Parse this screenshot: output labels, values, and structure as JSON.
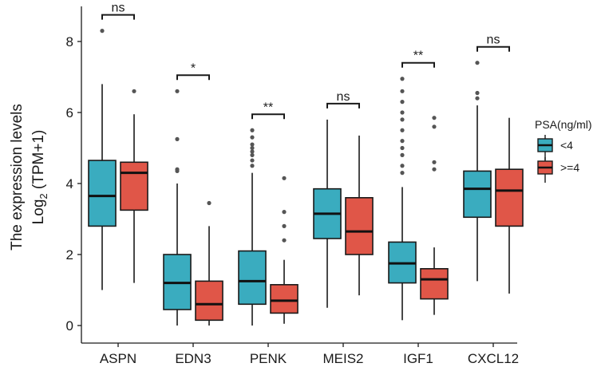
{
  "chart_data": {
    "type": "boxplot",
    "title": "",
    "xlabel": "",
    "ylabel_line1": "The expression levels",
    "ylabel_line2_prefix": "Log",
    "ylabel_line2_sub": "2",
    "ylabel_line2_suffix": " (TPM+1)",
    "ylim": [
      0,
      9
    ],
    "yticks": [
      0,
      2,
      4,
      6,
      8
    ],
    "categories": [
      "ASPN",
      "EDN3",
      "PENK",
      "MEIS2",
      "IGF1",
      "CXCL12"
    ],
    "legend": {
      "title": "PSA(ng/ml)",
      "position": "right",
      "entries": [
        "<4",
        ">=4"
      ]
    },
    "series_colors": [
      "#3aacbf",
      "#e05648"
    ],
    "significance": [
      "ns",
      "*",
      "**",
      "ns",
      "**",
      "ns"
    ],
    "series": [
      {
        "name": "<4",
        "boxes": [
          {
            "whisker_low": 1.0,
            "q1": 2.8,
            "median": 3.65,
            "q3": 4.65,
            "whisker_high": 6.8,
            "outliers": [
              8.3
            ]
          },
          {
            "whisker_low": 0.0,
            "q1": 0.45,
            "median": 1.2,
            "q3": 2.0,
            "whisker_high": 4.0,
            "outliers": [
              4.35,
              4.4,
              5.25,
              6.6
            ]
          },
          {
            "whisker_low": 0.0,
            "q1": 0.6,
            "median": 1.25,
            "q3": 2.1,
            "whisker_high": 4.3,
            "outliers": [
              4.5,
              4.65,
              4.8,
              4.9,
              5.0,
              5.1,
              5.3,
              5.5
            ]
          },
          {
            "whisker_low": 0.5,
            "q1": 2.45,
            "median": 3.15,
            "q3": 3.85,
            "whisker_high": 5.8,
            "outliers": []
          },
          {
            "whisker_low": 0.15,
            "q1": 1.2,
            "median": 1.75,
            "q3": 2.35,
            "whisker_high": 3.9,
            "outliers": [
              4.3,
              4.5,
              4.8,
              5.0,
              5.2,
              5.5,
              5.8,
              6.0,
              6.3,
              6.6,
              6.95
            ]
          },
          {
            "whisker_low": 1.25,
            "q1": 3.05,
            "median": 3.85,
            "q3": 4.35,
            "whisker_high": 6.2,
            "outliers": [
              6.4,
              6.55,
              7.4
            ]
          }
        ]
      },
      {
        "name": ">=4",
        "boxes": [
          {
            "whisker_low": 1.2,
            "q1": 3.25,
            "median": 4.3,
            "q3": 4.6,
            "whisker_high": 5.95,
            "outliers": [
              6.6
            ]
          },
          {
            "whisker_low": 0.0,
            "q1": 0.15,
            "median": 0.6,
            "q3": 1.25,
            "whisker_high": 2.8,
            "outliers": [
              3.45
            ]
          },
          {
            "whisker_low": 0.05,
            "q1": 0.35,
            "median": 0.7,
            "q3": 1.15,
            "whisker_high": 1.85,
            "outliers": [
              2.4,
              2.8,
              3.2,
              4.15
            ]
          },
          {
            "whisker_low": 0.85,
            "q1": 2.0,
            "median": 2.65,
            "q3": 3.6,
            "whisker_high": 5.35,
            "outliers": []
          },
          {
            "whisker_low": 0.3,
            "q1": 0.75,
            "median": 1.3,
            "q3": 1.6,
            "whisker_high": 2.2,
            "outliers": [
              4.4,
              4.6,
              5.6,
              5.85
            ]
          },
          {
            "whisker_low": 0.9,
            "q1": 2.8,
            "median": 3.8,
            "q3": 4.4,
            "whisker_high": 5.85,
            "outliers": []
          }
        ]
      }
    ]
  }
}
